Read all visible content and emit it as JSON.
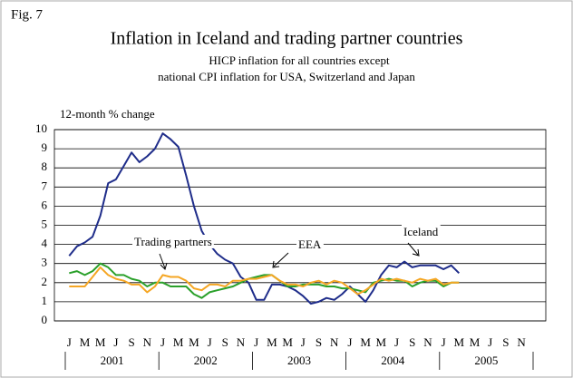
{
  "chart_data": {
    "type": "line",
    "fig_label": "Fig. 7",
    "title": "Inflation in Iceland and trading partner countries",
    "subtitle": [
      "HICP inflation for all countries except",
      "national CPI inflation for USA, Switzerland and Japan"
    ],
    "y_label": "12-month % change",
    "categories": [
      "J",
      null,
      "M",
      null,
      "M",
      null,
      "J",
      null,
      "S",
      null,
      "N",
      null,
      "J",
      null,
      "M",
      null,
      "M",
      null,
      "J",
      null,
      "S",
      null,
      "N",
      null,
      "J",
      null,
      "M",
      null,
      "M",
      null,
      "J",
      null,
      "S",
      null,
      "N",
      null,
      "J",
      null,
      "M",
      null,
      "M",
      null,
      "J",
      null,
      "S",
      null,
      "N",
      null,
      "J",
      null,
      "M",
      null,
      "M",
      null,
      "J",
      null,
      "S",
      null,
      "N",
      null
    ],
    "years": [
      "2001",
      "2002",
      "2003",
      "2004",
      "2005"
    ],
    "series": [
      {
        "name": "Iceland",
        "color": "#1f2d8a",
        "values": [
          3.4,
          3.9,
          4.1,
          4.4,
          5.5,
          7.2,
          7.4,
          8.1,
          8.8,
          8.3,
          8.6,
          9.0,
          9.8,
          9.5,
          9.1,
          7.6,
          6.0,
          4.7,
          4.0,
          3.5,
          3.2,
          3.0,
          2.3,
          2.0,
          1.1,
          1.1,
          1.9,
          1.9,
          1.8,
          1.6,
          1.3,
          0.9,
          1.0,
          1.2,
          1.1,
          1.4,
          1.8,
          1.4,
          1.0,
          1.6,
          2.4,
          2.9,
          2.8,
          3.1,
          2.8,
          2.9,
          2.9,
          2.9,
          2.7,
          2.9,
          2.5,
          null,
          null,
          null,
          null,
          null,
          null,
          null,
          null,
          null
        ]
      },
      {
        "name": "EEA",
        "color": "#2aa02a",
        "values": [
          2.5,
          2.6,
          2.4,
          2.6,
          3.0,
          2.8,
          2.4,
          2.4,
          2.2,
          2.1,
          1.8,
          2.0,
          2.0,
          1.8,
          1.8,
          1.8,
          1.4,
          1.2,
          1.5,
          1.6,
          1.7,
          1.8,
          2.0,
          2.2,
          2.3,
          2.4,
          2.4,
          2.1,
          1.8,
          1.8,
          1.9,
          1.9,
          1.9,
          1.8,
          1.8,
          1.7,
          1.7,
          1.6,
          1.5,
          2.0,
          2.1,
          2.2,
          2.1,
          2.1,
          1.8,
          2.0,
          2.1,
          2.1,
          1.8,
          2.0,
          2.0,
          null,
          null,
          null,
          null,
          null,
          null,
          null,
          null,
          null
        ]
      },
      {
        "name": "Trading partners",
        "color": "#f5a623",
        "values": [
          1.8,
          1.8,
          1.8,
          2.3,
          2.8,
          2.4,
          2.2,
          2.1,
          1.9,
          1.9,
          1.5,
          1.8,
          2.4,
          2.3,
          2.3,
          2.1,
          1.7,
          1.6,
          1.9,
          1.9,
          1.8,
          2.1,
          2.1,
          2.2,
          2.2,
          2.3,
          2.4,
          2.1,
          1.9,
          1.9,
          1.8,
          2.0,
          2.1,
          1.9,
          2.1,
          2.0,
          1.7,
          1.4,
          1.6,
          1.9,
          2.2,
          2.1,
          2.2,
          2.1,
          2.0,
          2.2,
          2.1,
          2.2,
          1.9,
          2.0,
          2.0,
          null,
          null,
          null,
          null,
          null,
          null,
          null,
          null,
          null
        ]
      }
    ],
    "ylim": [
      0,
      10
    ],
    "yticks": [
      0,
      1,
      2,
      3,
      4,
      5,
      6,
      7,
      8,
      9,
      10
    ],
    "grid": true
  }
}
